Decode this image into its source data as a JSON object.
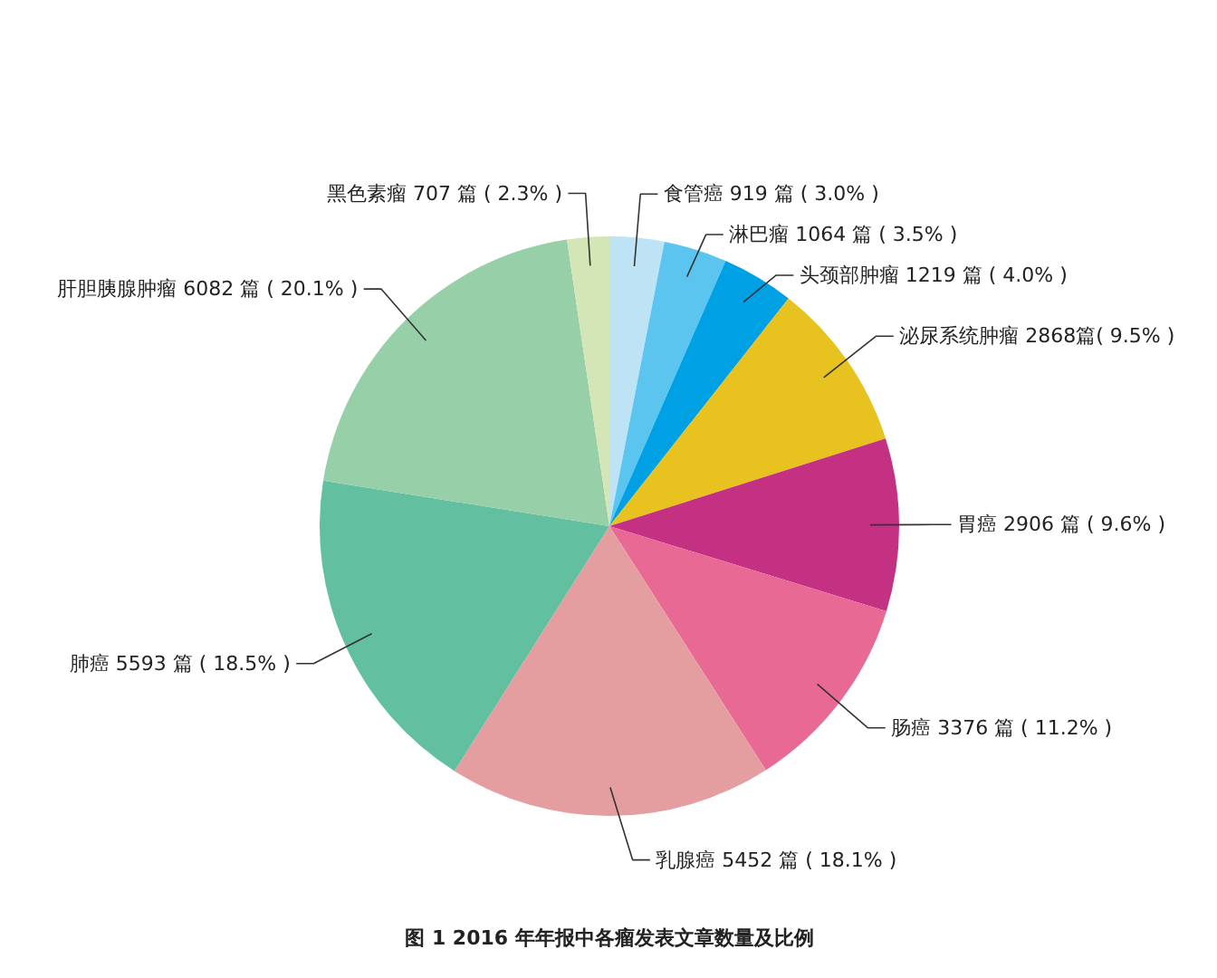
{
  "chart_data": {
    "type": "pie",
    "title": "图 1 2016 年年报中各瘤发表文章数量及比例",
    "categories": [
      "食管癌",
      "淋巴瘤",
      "头颈部肿瘤",
      "泌尿系统肿瘤",
      "胃癌",
      "肠癌",
      "乳腺癌",
      "肺癌",
      "肝胆胰腺肿瘤",
      "黑色素瘤"
    ],
    "values": [
      919,
      1064,
      1219,
      2868,
      2906,
      3376,
      5452,
      5593,
      6082,
      707
    ],
    "value_labels": [
      "919 篇 ( 3.0% )",
      "1064 篇 ( 3.5% )",
      "1219 篇 ( 4.0% )",
      "2868篇( 9.5% )",
      "2906 篇 ( 9.6% )",
      "3376 篇 ( 11.2% )",
      "5452 篇 ( 18.1% )",
      "5593 篇 ( 18.5% )",
      "6082 篇 ( 20.1% )",
      "707 篇 ( 2.3% )"
    ],
    "colors": [
      "#bde3f5",
      "#5bc5f0",
      "#00a0e4",
      "#e8c21f",
      "#c43182",
      "#e96995",
      "#e59ea0",
      "#62bf9f",
      "#97cfa8",
      "#d4e6b5"
    ],
    "legend": false
  }
}
